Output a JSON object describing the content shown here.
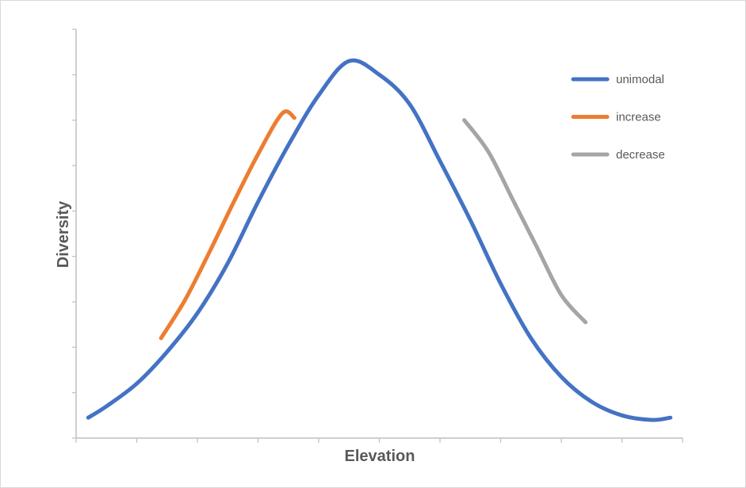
{
  "chart_data": {
    "type": "line",
    "title": "",
    "xlabel": "Elevation",
    "ylabel": "Diversity",
    "xlim": [
      0,
      10
    ],
    "ylim": [
      0,
      9
    ],
    "grid": false,
    "legend_position": "top-right",
    "tick_labels_shown": false,
    "series": [
      {
        "name": "unimodal",
        "color": "#4472C4",
        "x": [
          0.2,
          0.5,
          1.0,
          1.5,
          2.0,
          2.5,
          3.0,
          3.5,
          4.0,
          4.5,
          5.0,
          5.5,
          6.0,
          6.5,
          7.0,
          7.5,
          8.0,
          8.5,
          9.0,
          9.5,
          9.8
        ],
        "y": [
          0.45,
          0.7,
          1.2,
          1.9,
          2.75,
          3.85,
          5.2,
          6.45,
          7.55,
          8.3,
          8.0,
          7.35,
          6.1,
          4.8,
          3.4,
          2.2,
          1.35,
          0.8,
          0.5,
          0.4,
          0.45
        ]
      },
      {
        "name": "increase",
        "color": "#ED7D31",
        "x": [
          1.4,
          1.8,
          2.2,
          2.6,
          3.0,
          3.4,
          3.6
        ],
        "y": [
          2.2,
          3.05,
          4.1,
          5.2,
          6.25,
          7.15,
          7.05
        ]
      },
      {
        "name": "decrease",
        "color": "#A5A5A5",
        "x": [
          6.4,
          6.8,
          7.2,
          7.6,
          8.0,
          8.4
        ],
        "y": [
          7.0,
          6.3,
          5.25,
          4.2,
          3.15,
          2.55
        ]
      }
    ]
  }
}
